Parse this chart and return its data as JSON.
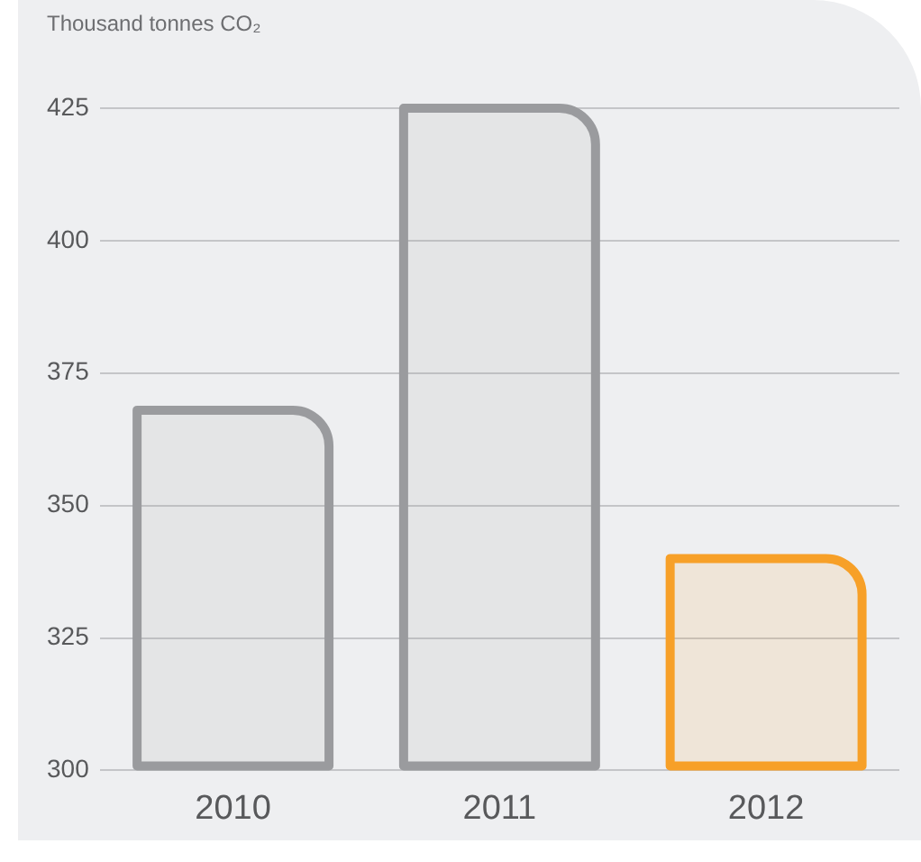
{
  "chart_data": {
    "type": "bar",
    "ylabel": "Thousand tonnes CO₂",
    "categories": [
      "2010",
      "2011",
      "2012"
    ],
    "values": [
      368,
      425,
      340
    ],
    "colors": [
      "#9a9b9e",
      "#9a9b9e",
      "#f7a028"
    ],
    "ylim": [
      300,
      425
    ],
    "yticks": [
      300,
      325,
      350,
      375,
      400,
      425
    ],
    "grid": "y"
  }
}
